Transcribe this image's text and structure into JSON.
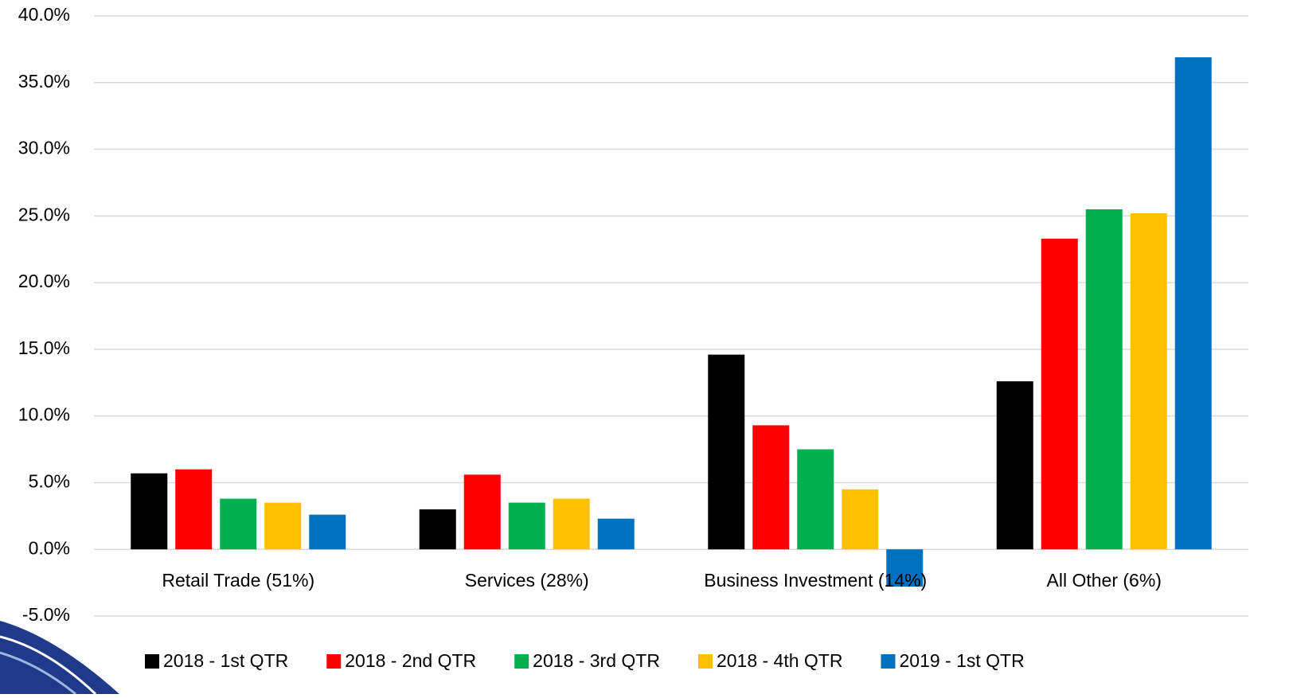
{
  "chart_data": {
    "type": "bar",
    "categories": [
      "Retail Trade (51%)",
      "Services (28%)",
      "Business Investment (14%)",
      "All Other (6%)"
    ],
    "series": [
      {
        "name": "2018 - 1st QTR",
        "color": "#000000",
        "values": [
          5.7,
          3.0,
          14.6,
          12.6
        ]
      },
      {
        "name": "2018 - 2nd QTR",
        "color": "#ff0000",
        "values": [
          6.0,
          5.6,
          9.3,
          23.3
        ]
      },
      {
        "name": "2018 - 3rd QTR",
        "color": "#00b050",
        "values": [
          3.8,
          3.5,
          7.5,
          25.5
        ]
      },
      {
        "name": "2018 - 4th QTR",
        "color": "#ffc000",
        "values": [
          3.5,
          3.8,
          4.5,
          25.2
        ]
      },
      {
        "name": "2019 - 1st QTR",
        "color": "#0070c0",
        "values": [
          2.6,
          2.3,
          -2.8,
          36.9
        ]
      }
    ],
    "ylim": [
      -5,
      40
    ],
    "yticks": [
      {
        "value": -5,
        "label": "-5.0%"
      },
      {
        "value": 0,
        "label": "0.0%"
      },
      {
        "value": 5,
        "label": "5.0%"
      },
      {
        "value": 10,
        "label": "10.0%"
      },
      {
        "value": 15,
        "label": "15.0%"
      },
      {
        "value": 20,
        "label": "20.0%"
      },
      {
        "value": 25,
        "label": "25.0%"
      },
      {
        "value": 30,
        "label": "30.0%"
      },
      {
        "value": 35,
        "label": "35.0%"
      },
      {
        "value": 40,
        "label": "40.0%"
      }
    ],
    "grid": true,
    "legend": "bottom"
  }
}
